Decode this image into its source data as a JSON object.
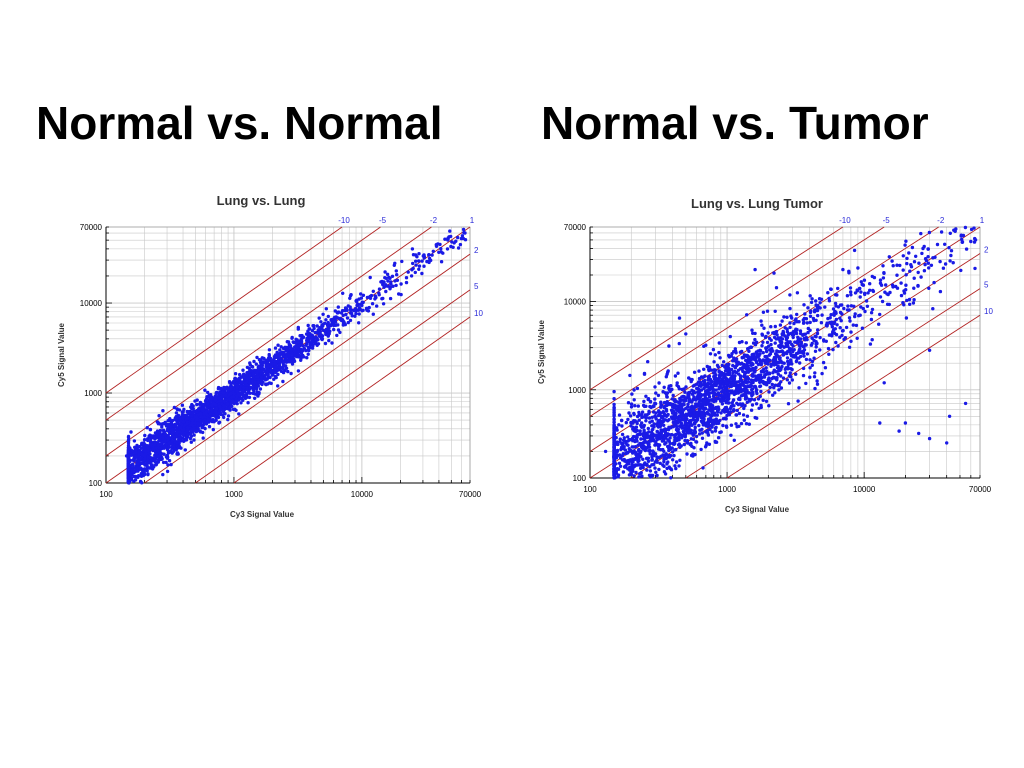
{
  "slide": {
    "left_heading": "Normal vs. Normal",
    "right_heading": "Normal vs. Tumor"
  },
  "colors": {
    "points": "#1a1ae6",
    "fold_lines": "#b22222",
    "grid": "#c8c8c8",
    "fold_labels": "#2b2bd8"
  },
  "chart_data": [
    {
      "type": "scatter",
      "scale": "log-log",
      "title": "Lung vs. Lung",
      "xlabel": "Cy3 Signal Value",
      "ylabel": "Cy5 Signal Value",
      "xlim": [
        100,
        70000
      ],
      "ylim": [
        100,
        70000
      ],
      "x_ticks": [
        "100",
        "1000",
        "10000",
        "70000"
      ],
      "y_ticks": [
        "100",
        "1000",
        "10000",
        "70000"
      ],
      "grid": true,
      "fold_lines": [
        {
          "label": "-10",
          "ratio": 10
        },
        {
          "label": "-5",
          "ratio": 5
        },
        {
          "label": "-2",
          "ratio": 2
        },
        {
          "label": "1",
          "ratio": 1
        },
        {
          "label": "2",
          "ratio": 0.5
        },
        {
          "label": "5",
          "ratio": 0.2
        },
        {
          "label": "10",
          "ratio": 0.1
        }
      ],
      "points": {
        "count": 2600,
        "x_range": [
          150,
          65000
        ],
        "log10_spread_sd": 0.085,
        "seed": 7,
        "outliers": [
          [
            145,
            200
          ],
          [
            170,
            235
          ],
          [
            260,
            560
          ],
          [
            480,
            720
          ],
          [
            2800,
            1650
          ],
          [
            4200,
            5600
          ],
          [
            60000,
            52000
          ],
          [
            64000,
            60000
          ]
        ]
      }
    },
    {
      "type": "scatter",
      "scale": "log-log",
      "title": "Lung vs. Lung Tumor",
      "xlabel": "Cy3 Signal Value",
      "ylabel": "Cy5 Signal Value",
      "xlim": [
        100,
        70000
      ],
      "ylim": [
        100,
        70000
      ],
      "x_ticks": [
        "100",
        "1000",
        "10000",
        "70000"
      ],
      "y_ticks": [
        "100",
        "1000",
        "10000",
        "70000"
      ],
      "grid": true,
      "fold_lines": [
        {
          "label": "-10",
          "ratio": 10
        },
        {
          "label": "-5",
          "ratio": 5
        },
        {
          "label": "-2",
          "ratio": 2
        },
        {
          "label": "1",
          "ratio": 1
        },
        {
          "label": "2",
          "ratio": 0.5
        },
        {
          "label": "5",
          "ratio": 0.2
        },
        {
          "label": "10",
          "ratio": 0.1
        }
      ],
      "points": {
        "count": 2600,
        "x_range": [
          150,
          65000
        ],
        "log10_spread_sd": 0.22,
        "seed": 19,
        "outliers": [
          [
            130,
            200
          ],
          [
            500,
            4300
          ],
          [
            450,
            6500
          ],
          [
            700,
            3200
          ],
          [
            1600,
            23000
          ],
          [
            2200,
            21000
          ],
          [
            7000,
            23000
          ],
          [
            9000,
            24000
          ],
          [
            20000,
            420
          ],
          [
            25000,
            320
          ],
          [
            30000,
            280
          ],
          [
            40000,
            250
          ],
          [
            42000,
            500
          ],
          [
            55000,
            700
          ],
          [
            13000,
            420
          ],
          [
            18000,
            340
          ],
          [
            60000,
            48000
          ],
          [
            65000,
            50000
          ],
          [
            52000,
            47000
          ],
          [
            14000,
            1200
          ],
          [
            30000,
            2800
          ],
          [
            250,
            1500
          ]
        ]
      }
    }
  ]
}
